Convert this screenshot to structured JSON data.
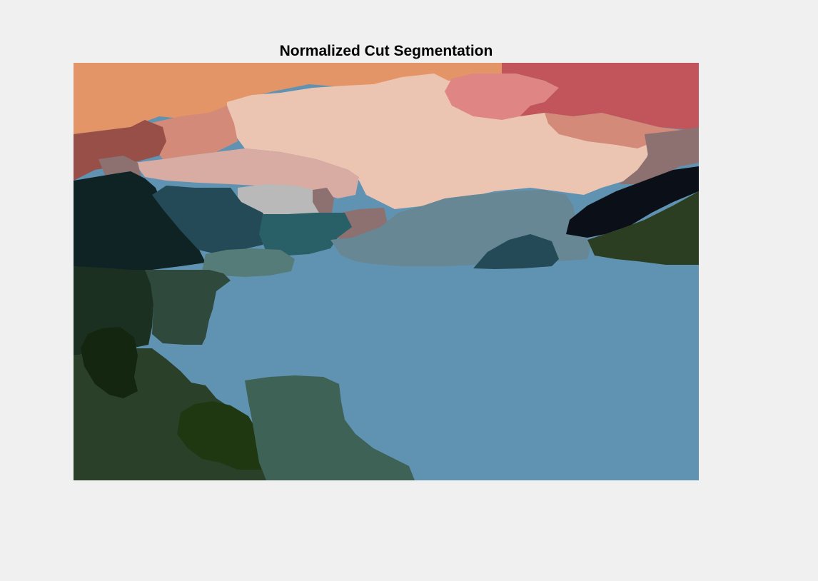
{
  "figure": {
    "title": "Normalized Cut Segmentation"
  },
  "image": {
    "description_kind": "segmented landscape image",
    "palette": {
      "sky_orange": "#e39568",
      "sky_pale_pink": "#ecc4b2",
      "sky_salmon": "#df8684",
      "sky_red": "#c2555b",
      "sky_dusty_rose": "#d48a78",
      "sky_light_pink": "#d8aca3",
      "sky_mauve": "#8c7170",
      "mountain_brown_red": "#974f48",
      "mountain_dark_teal": "#0f2324",
      "mountain_teal": "#234a56",
      "mountain_mid_teal": "#295f66",
      "mountain_slate": "#668793",
      "mountain_gray": "#b9b9b9",
      "mountain_sage": "#557c78",
      "mountain_black": "#0b0f18",
      "shore_dark_green": "#2b3e22",
      "forest_dark_green": "#1b3020",
      "forest_olive": "#2a4028",
      "forest_deep_green": "#14260f",
      "forest_moss": "#203812",
      "forest_mid_green": "#2f4a3c",
      "forest_gray_green": "#3e6256",
      "water_blue": "#6093b2"
    }
  }
}
